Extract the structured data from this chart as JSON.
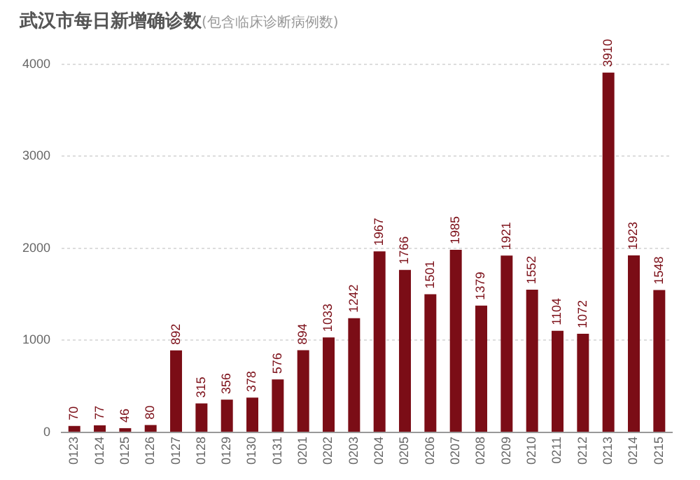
{
  "chart_data": {
    "type": "bar",
    "title": "武汉市每日新增确诊数",
    "subtitle": "(包含临床诊断病例数)",
    "categories": [
      "0123",
      "0124",
      "0125",
      "0126",
      "0127",
      "0128",
      "0129",
      "0130",
      "0131",
      "0201",
      "0202",
      "0203",
      "0204",
      "0205",
      "0206",
      "0207",
      "0208",
      "0209",
      "0210",
      "0211",
      "0212",
      "0213",
      "0214",
      "0215"
    ],
    "values": [
      70,
      77,
      46,
      80,
      892,
      315,
      356,
      378,
      576,
      894,
      1033,
      1242,
      1967,
      1766,
      1501,
      1985,
      1379,
      1921,
      1552,
      1104,
      1072,
      3910,
      1923,
      1548
    ],
    "color": "#7b0d16",
    "ylim": [
      0,
      4000
    ],
    "yticks": [
      0,
      1000,
      2000,
      3000,
      4000
    ],
    "grid": "y",
    "data_labels": true
  }
}
